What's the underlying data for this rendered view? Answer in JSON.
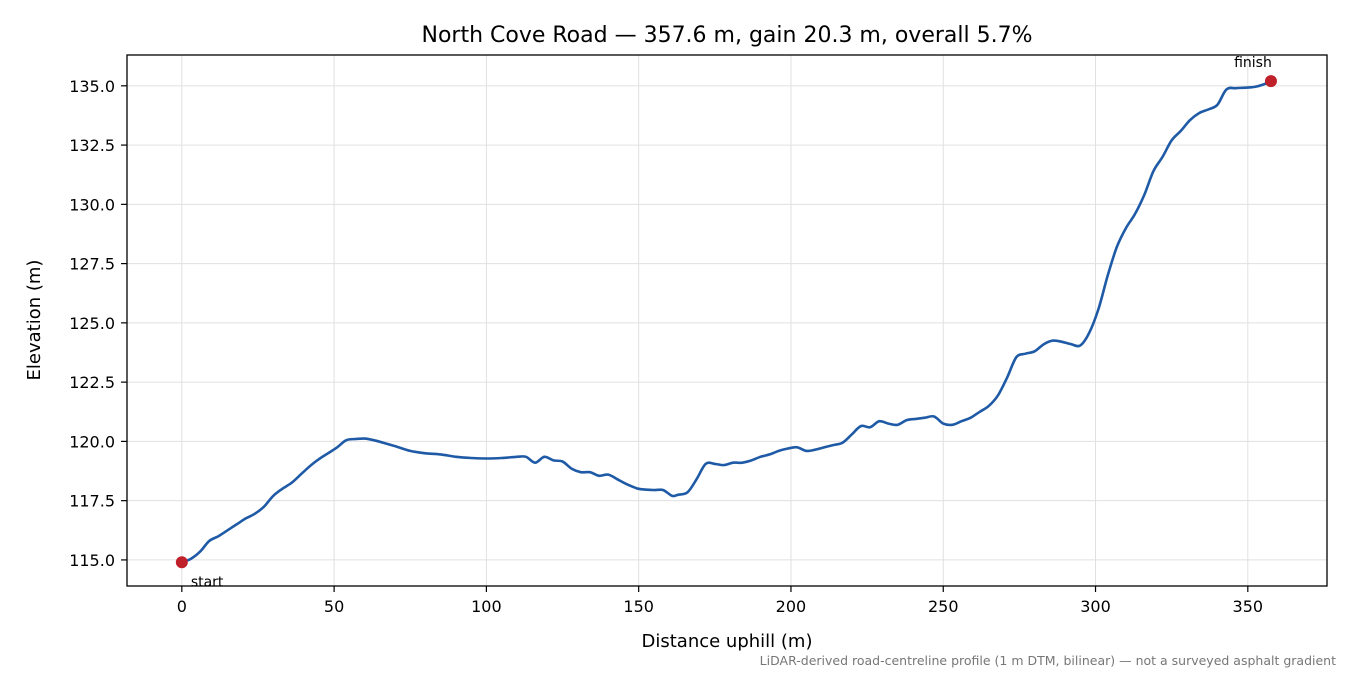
{
  "chart_data": {
    "type": "line",
    "title": "North Cove Road — 357.6 m, gain 20.3 m, overall 5.7%",
    "xlabel": "Distance uphill (m)",
    "ylabel": "Elevation (m)",
    "xlim": [
      -18,
      376
    ],
    "ylim": [
      113.9,
      136.3
    ],
    "xticks": [
      0,
      50,
      100,
      150,
      200,
      250,
      300,
      350
    ],
    "xtick_labels": [
      "0",
      "50",
      "100",
      "150",
      "200",
      "250",
      "300",
      "350"
    ],
    "yticks": [
      115.0,
      117.5,
      120.0,
      122.5,
      125.0,
      127.5,
      130.0,
      132.5,
      135.0
    ],
    "ytick_labels": [
      "115.0",
      "117.5",
      "120.0",
      "122.5",
      "125.0",
      "127.5",
      "130.0",
      "132.5",
      "135.0"
    ],
    "grid": true,
    "footnote": "LiDAR-derived road-centreline profile (1 m DTM, bilinear) — not a surveyed asphalt gradient",
    "colors": {
      "line": "#1f5aa6",
      "marker": "#c0202a",
      "grid": "#e0e0e0"
    },
    "series": [
      {
        "x": [
          0,
          3,
          6,
          9,
          12,
          15,
          18,
          21,
          24,
          27,
          30,
          33,
          36,
          39,
          42,
          45,
          48,
          51,
          54,
          57,
          60,
          63,
          66,
          70,
          75,
          80,
          85,
          90,
          95,
          100,
          105,
          110,
          113,
          116,
          119,
          122,
          125,
          128,
          131,
          134,
          137,
          140,
          143,
          146,
          150,
          155,
          158,
          161,
          163,
          166,
          169,
          172,
          175,
          178,
          181,
          184,
          187,
          190,
          193,
          196,
          199,
          202,
          205,
          208,
          211,
          214,
          217,
          220,
          223,
          226,
          229,
          232,
          235,
          238,
          241,
          244,
          247,
          250,
          253,
          256,
          259,
          262,
          265,
          268,
          271,
          274,
          277,
          280,
          283,
          286,
          289,
          292,
          295,
          298,
          301,
          304,
          307,
          310,
          313,
          316,
          319,
          322,
          325,
          328,
          331,
          334,
          337,
          340,
          343,
          346,
          349,
          352,
          355,
          357.6
        ],
        "values": [
          114.9,
          115.05,
          115.35,
          115.8,
          116.0,
          116.25,
          116.5,
          116.75,
          116.95,
          117.25,
          117.7,
          118.0,
          118.25,
          118.6,
          118.95,
          119.25,
          119.5,
          119.75,
          120.05,
          120.1,
          120.12,
          120.05,
          119.95,
          119.8,
          119.6,
          119.5,
          119.45,
          119.35,
          119.3,
          119.28,
          119.3,
          119.35,
          119.35,
          119.1,
          119.35,
          119.2,
          119.15,
          118.85,
          118.7,
          118.7,
          118.55,
          118.6,
          118.4,
          118.2,
          118.0,
          117.95,
          117.95,
          117.7,
          117.75,
          117.85,
          118.4,
          119.05,
          119.05,
          119.0,
          119.1,
          119.1,
          119.2,
          119.35,
          119.45,
          119.6,
          119.7,
          119.75,
          119.6,
          119.65,
          119.75,
          119.85,
          119.95,
          120.3,
          120.65,
          120.6,
          120.85,
          120.75,
          120.7,
          120.9,
          120.95,
          121.0,
          121.05,
          120.75,
          120.7,
          120.85,
          121.0,
          121.25,
          121.5,
          121.95,
          122.7,
          123.55,
          123.7,
          123.8,
          124.1,
          124.25,
          124.2,
          124.1,
          124.05,
          124.6,
          125.6,
          127.0,
          128.2,
          129.0,
          129.6,
          130.4,
          131.4,
          132.0,
          132.7,
          133.1,
          133.55,
          133.85,
          134.0,
          134.2,
          134.85,
          134.9,
          134.92,
          134.95,
          135.05,
          135.2
        ]
      }
    ],
    "markers": [
      {
        "label": "start",
        "x": 0,
        "y": 114.9
      },
      {
        "label": "finish",
        "x": 357.6,
        "y": 135.2
      }
    ]
  }
}
